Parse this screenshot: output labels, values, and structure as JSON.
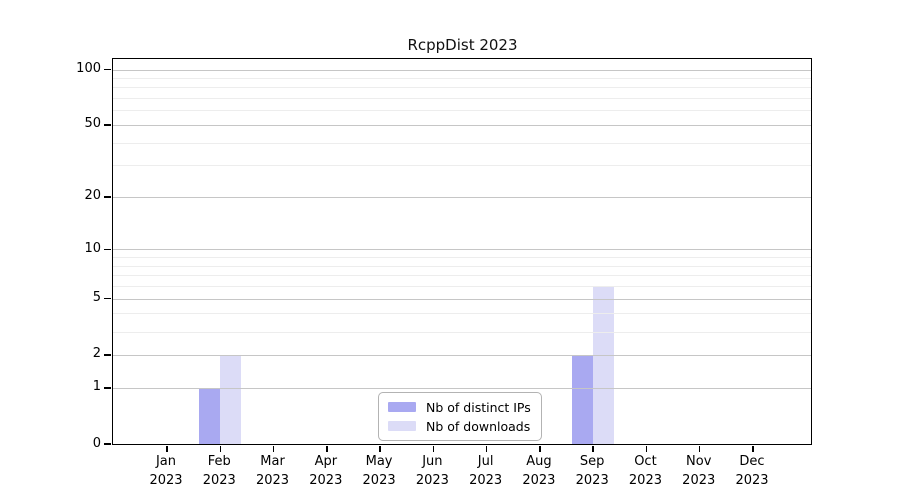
{
  "chart_data": {
    "type": "bar",
    "title": "RcppDist 2023",
    "categories": [
      "Jan 2023",
      "Feb 2023",
      "Mar 2023",
      "Apr 2023",
      "May 2023",
      "Jun 2023",
      "Jul 2023",
      "Aug 2023",
      "Sep 2023",
      "Oct 2023",
      "Nov 2023",
      "Dec 2023"
    ],
    "series": [
      {
        "name": "Nb of distinct IPs",
        "color": "#a9a9f1",
        "values": [
          0,
          1,
          0,
          0,
          0,
          0,
          0,
          0,
          2,
          0,
          0,
          0
        ]
      },
      {
        "name": "Nb of downloads",
        "color": "#dcdcf7",
        "values": [
          0,
          2,
          0,
          0,
          0,
          0,
          0,
          0,
          6,
          0,
          0,
          0
        ]
      }
    ],
    "xlabel": "",
    "ylabel": "",
    "y_axis": {
      "scale": "log1p",
      "ticks": [
        0,
        1,
        2,
        5,
        10,
        20,
        50,
        100
      ],
      "minor_ticks": [
        3,
        4,
        6,
        7,
        8,
        9,
        30,
        40,
        60,
        70,
        80,
        90
      ],
      "max_display": 114
    },
    "grid": true,
    "legend_position": "bottom-center"
  },
  "colors": {
    "bar_distinct_ips": "#a9a9f1",
    "bar_downloads": "#dcdcf7",
    "grid_major": "#c6c6c6",
    "grid_minor": "#ededed",
    "axis_frame": "#000000"
  }
}
